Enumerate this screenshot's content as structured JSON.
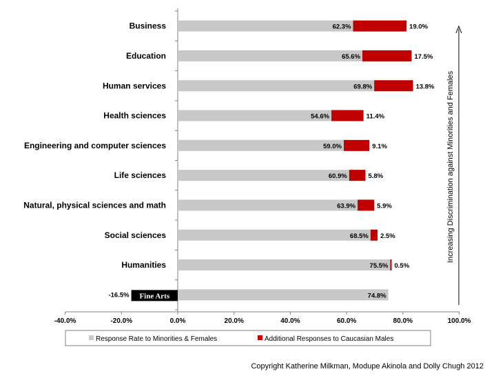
{
  "chart_data": {
    "type": "bar",
    "orientation": "horizontal",
    "stacked": true,
    "categories": [
      "Business",
      "Education",
      "Human services",
      "Health sciences",
      "Engineering and computer sciences",
      "Life sciences",
      "Natural, physical sciences and math",
      "Social sciences",
      "Humanities",
      "Fine Arts"
    ],
    "series": [
      {
        "name": "Response Rate to Minorities & Females",
        "color": "#c8c8c8",
        "values": [
          62.3,
          65.6,
          69.8,
          54.6,
          59.0,
          60.9,
          63.9,
          68.5,
          75.5,
          74.8
        ],
        "labels": [
          "62.3%",
          "65.6%",
          "69.8%",
          "54.6%",
          "59.0%",
          "60.9%",
          "63.9%",
          "68.5%",
          "75.5%",
          "74.8%"
        ]
      },
      {
        "name": "Additional Responses to Caucasian Males",
        "color": "#c00000",
        "values": [
          19.0,
          17.5,
          13.8,
          11.4,
          9.1,
          5.8,
          5.9,
          2.5,
          0.5,
          -16.5
        ],
        "labels": [
          "19.0%",
          "17.5%",
          "13.8%",
          "11.4%",
          "9.1%",
          "5.8%",
          "5.9%",
          "2.5%",
          "0.5%",
          "-16.5%"
        ]
      }
    ],
    "special_bar": {
      "category": "Fine Arts",
      "color": "#000000"
    },
    "x_ticks": [
      "-40.0%",
      "-20.0%",
      "0.0%",
      "20.0%",
      "40.0%",
      "60.0%",
      "80.0%",
      "100.0%"
    ],
    "xlim": [
      -40,
      100
    ],
    "xlabel": "",
    "ylabel": "",
    "side_title": "Increasing Discrimination  against Minorities and Females",
    "legend_position": "bottom",
    "grid": false,
    "axis_color": "#808080"
  },
  "footer": {
    "copyright": "Copyright Katherine Milkman, Modupe Akinola and Dolly Chugh 2012"
  }
}
